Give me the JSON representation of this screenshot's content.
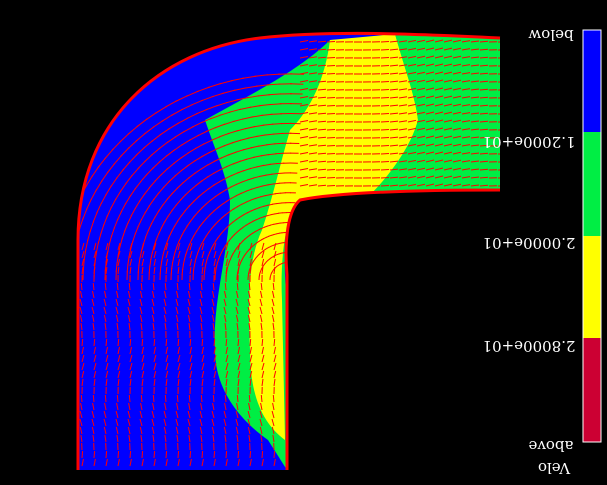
{
  "legend": {
    "title": "Velo",
    "top_label": "below",
    "bottom_label": "above",
    "ticks": [
      "1.2000e+01",
      "2.0000e+01",
      "2.8000e+01"
    ],
    "bands": [
      {
        "color": "#0000ff"
      },
      {
        "color": "#00ee44"
      },
      {
        "color": "#ffff00"
      },
      {
        "color": "#cc0033"
      }
    ]
  },
  "colors": {
    "background": "#000000",
    "vector": "#ff0000",
    "low": "#0000ff",
    "mid": "#00ee44",
    "high": "#ffff00"
  }
}
